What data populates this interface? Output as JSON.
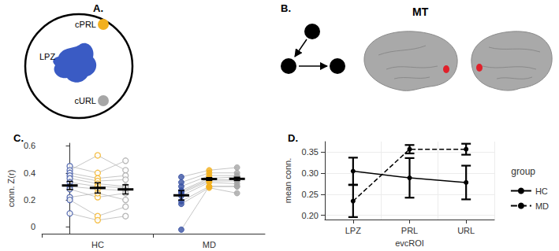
{
  "panel_A": {
    "label": "A.",
    "regions": [
      {
        "label": "cPRL",
        "color": "#f2b01e"
      },
      {
        "label": "LPZ",
        "color": "#3a5bc4"
      },
      {
        "label": "cURL",
        "color": "#a6a6a6"
      }
    ]
  },
  "panel_B": {
    "label": "B.",
    "title": "MT",
    "spot_color": "#e0202a"
  },
  "chart_data": [
    {
      "type": "scatter",
      "title": "C.",
      "y_label": "conn. Z(r)",
      "categories": [
        "HC",
        "MD"
      ],
      "colors": [
        "#3a53a4",
        "#f2b01e",
        "#a6a6a6"
      ],
      "groups": [
        {
          "name": "HC",
          "marker": "open_circle",
          "subjects": [
            [
              0.45,
              0.4,
              0.49
            ],
            [
              0.42,
              0.53,
              0.42
            ],
            [
              0.4,
              0.36,
              0.38
            ],
            [
              0.38,
              0.34,
              0.35
            ],
            [
              0.36,
              0.32,
              0.3
            ],
            [
              0.33,
              0.3,
              0.29
            ],
            [
              0.3,
              0.28,
              0.27
            ],
            [
              0.28,
              0.22,
              0.25
            ],
            [
              0.22,
              0.25,
              0.2
            ],
            [
              0.2,
              0.08,
              0.15
            ],
            [
              0.1,
              0.05,
              0.08
            ]
          ],
          "mean": [
            0.307,
            0.289,
            0.278
          ],
          "error": [
            0.03,
            0.038,
            0.034
          ]
        },
        {
          "name": "MD",
          "marker": "circle",
          "subjects": [
            [
              0.37,
              0.42,
              0.44
            ],
            [
              0.33,
              0.4,
              0.4
            ],
            [
              0.3,
              0.38,
              0.38
            ],
            [
              0.27,
              0.36,
              0.37
            ],
            [
              0.26,
              0.35,
              0.35
            ],
            [
              0.25,
              0.34,
              0.34
            ],
            [
              0.23,
              0.33,
              0.32
            ],
            [
              0.19,
              0.3,
              0.3
            ],
            [
              0.17,
              0.29,
              0.25
            ],
            [
              -0.02,
              0.3,
              0.3
            ]
          ],
          "mean": [
            0.234,
            0.355,
            0.356
          ],
          "error": [
            0.035,
            0.01,
            0.012
          ]
        }
      ],
      "ylim": [
        -0.05,
        0.62
      ],
      "yticks": [
        0,
        0.2,
        0.4,
        0.6
      ],
      "grid": false
    },
    {
      "type": "line",
      "title": "D.",
      "x_label": "evcROI",
      "y_label": "mean conn.",
      "categories": [
        "LPZ",
        "PRL",
        "URL"
      ],
      "series": [
        {
          "name": "HC",
          "color": "#000000",
          "line_style": "solid",
          "marker": "circle",
          "values": [
            0.305,
            0.289,
            0.278
          ],
          "error": [
            0.032,
            0.047,
            0.04
          ]
        },
        {
          "name": "MD",
          "color": "#000000",
          "line_style": "dashed",
          "marker": "circle",
          "values": [
            0.234,
            0.357,
            0.357
          ],
          "error": [
            0.038,
            0.01,
            0.013
          ]
        }
      ],
      "legend": "right",
      "legend_title": "group",
      "ylim": [
        0.19,
        0.375
      ],
      "yticks": [
        {
          "value": 0.2,
          "label": "0.20"
        },
        0.25,
        {
          "value": 0.3,
          "label": "0.30"
        },
        0.35
      ],
      "grid": true
    }
  ]
}
